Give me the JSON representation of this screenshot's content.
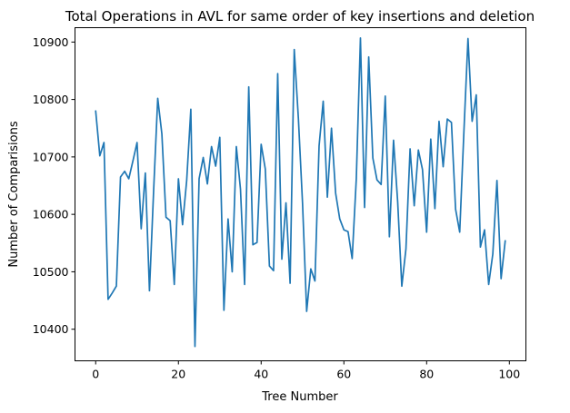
{
  "chart_data": {
    "type": "line",
    "title": "Total Operations in AVL for same order of key insertions and deletion",
    "xlabel": "Tree Number",
    "ylabel": "Number of Comparisions",
    "xlim": [
      -5,
      104
    ],
    "ylim": [
      10345,
      10925
    ],
    "xticks": [
      0,
      20,
      40,
      60,
      80,
      100
    ],
    "yticks": [
      10400,
      10500,
      10600,
      10700,
      10800,
      10900
    ],
    "line_color": "#1f77b4",
    "grid": false,
    "series": [
      {
        "x": [
          0,
          1,
          2,
          3,
          4,
          5,
          6,
          7,
          8,
          9,
          10,
          11,
          12,
          13,
          14,
          15,
          16,
          17,
          18,
          19,
          20,
          21,
          22,
          23,
          24,
          25,
          26,
          27,
          28,
          29,
          30,
          31,
          32,
          33,
          34,
          35,
          36,
          37,
          38,
          39,
          40,
          41,
          42,
          43,
          44,
          45,
          46,
          47,
          48,
          49,
          50,
          51,
          52,
          53,
          54,
          55,
          56,
          57,
          58,
          59,
          60,
          61,
          62,
          63,
          64,
          65,
          66,
          67,
          68,
          69,
          70,
          71,
          72,
          73,
          74,
          75,
          76,
          77,
          78,
          79,
          80,
          81,
          82,
          83,
          84,
          85,
          86,
          87,
          88,
          89,
          90,
          91,
          92,
          93,
          94,
          95,
          96,
          97,
          98,
          99
        ],
        "values": [
          10780,
          10702,
          10725,
          10452,
          10463,
          10475,
          10665,
          10675,
          10662,
          10693,
          10725,
          10575,
          10672,
          10467,
          10640,
          10802,
          10740,
          10595,
          10589,
          10478,
          10662,
          10582,
          10659,
          10783,
          10370,
          10662,
          10699,
          10653,
          10718,
          10684,
          10734,
          10433,
          10592,
          10500,
          10718,
          10644,
          10478,
          10822,
          10547,
          10551,
          10722,
          10679,
          10510,
          10502,
          10845,
          10522,
          10620,
          10480,
          10887,
          10767,
          10620,
          10431,
          10505,
          10484,
          10719,
          10797,
          10630,
          10750,
          10637,
          10592,
          10573,
          10570,
          10523,
          10662,
          10907,
          10612,
          10874,
          10698,
          10660,
          10652,
          10806,
          10561,
          10729,
          10622,
          10475,
          10540,
          10714,
          10615,
          10712,
          10678,
          10569,
          10731,
          10610,
          10762,
          10683,
          10766,
          10760,
          10609,
          10569,
          10742,
          10906,
          10762,
          10808,
          10543,
          10573,
          10478,
          10531,
          10659,
          10488,
          10554
        ]
      }
    ]
  }
}
